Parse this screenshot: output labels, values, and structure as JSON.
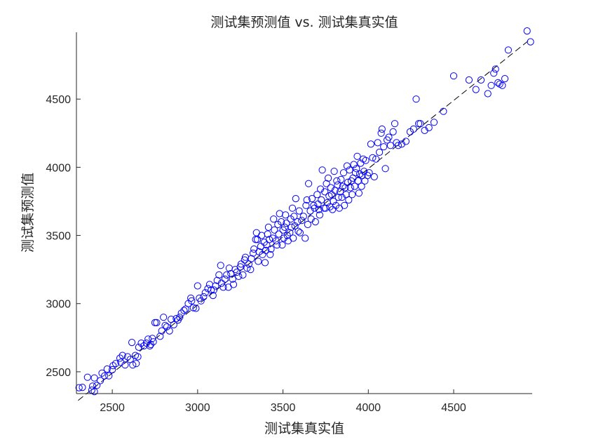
{
  "chart_data": {
    "type": "scatter",
    "title": "测试集预测值 vs. 测试集真实值",
    "xlabel": "测试集真实值",
    "ylabel": "测试集预测值",
    "xlim": [
      2290,
      4960
    ],
    "ylim": [
      2340,
      4990
    ],
    "xticks": [
      2500,
      3000,
      3500,
      4000,
      4500
    ],
    "yticks": [
      2500,
      3000,
      3500,
      4000,
      4500
    ],
    "marker": "open-circle",
    "marker_color": "#0000ff",
    "reference_line": {
      "style": "dashed",
      "color": "#000000",
      "from": [
        2300,
        2290
      ],
      "to": [
        4950,
        4940
      ]
    },
    "grid": false,
    "legend": "none",
    "points": [
      [
        2305,
        2383
      ],
      [
        2325,
        2386
      ],
      [
        2355,
        2460
      ],
      [
        2380,
        2365
      ],
      [
        2395,
        2355
      ],
      [
        2385,
        2395
      ],
      [
        2395,
        2455
      ],
      [
        2410,
        2400
      ],
      [
        2430,
        2435
      ],
      [
        2440,
        2490
      ],
      [
        2455,
        2470
      ],
      [
        2470,
        2520
      ],
      [
        2480,
        2470
      ],
      [
        2500,
        2515
      ],
      [
        2505,
        2545
      ],
      [
        2520,
        2560
      ],
      [
        2545,
        2600
      ],
      [
        2550,
        2570
      ],
      [
        2560,
        2620
      ],
      [
        2575,
        2550
      ],
      [
        2590,
        2610
      ],
      [
        2605,
        2590
      ],
      [
        2615,
        2715
      ],
      [
        2620,
        2550
      ],
      [
        2635,
        2620
      ],
      [
        2640,
        2560
      ],
      [
        2650,
        2610
      ],
      [
        2655,
        2680
      ],
      [
        2670,
        2710
      ],
      [
        2685,
        2690
      ],
      [
        2700,
        2710
      ],
      [
        2710,
        2740
      ],
      [
        2720,
        2690
      ],
      [
        2725,
        2700
      ],
      [
        2735,
        2745
      ],
      [
        2740,
        2720
      ],
      [
        2750,
        2860
      ],
      [
        2760,
        2860
      ],
      [
        2780,
        2760
      ],
      [
        2790,
        2800
      ],
      [
        2800,
        2900
      ],
      [
        2810,
        2840
      ],
      [
        2820,
        2830
      ],
      [
        2835,
        2800
      ],
      [
        2845,
        2885
      ],
      [
        2860,
        2845
      ],
      [
        2875,
        2890
      ],
      [
        2885,
        2880
      ],
      [
        2895,
        2900
      ],
      [
        2905,
        2930
      ],
      [
        2920,
        2950
      ],
      [
        2930,
        2960
      ],
      [
        2945,
        3000
      ],
      [
        2960,
        3040
      ],
      [
        2965,
        3020
      ],
      [
        2975,
        2970
      ],
      [
        2990,
        2965
      ],
      [
        3000,
        3130
      ],
      [
        3010,
        3040
      ],
      [
        3020,
        3020
      ],
      [
        3035,
        3050
      ],
      [
        3045,
        3080
      ],
      [
        3060,
        3110
      ],
      [
        3070,
        3140
      ],
      [
        3080,
        3100
      ],
      [
        3090,
        3060
      ],
      [
        3095,
        3100
      ],
      [
        3105,
        3130
      ],
      [
        3115,
        3170
      ],
      [
        3125,
        3210
      ],
      [
        3135,
        3280
      ],
      [
        3140,
        3150
      ],
      [
        3150,
        3120
      ],
      [
        3160,
        3180
      ],
      [
        3170,
        3210
      ],
      [
        3180,
        3120
      ],
      [
        3185,
        3260
      ],
      [
        3195,
        3220
      ],
      [
        3205,
        3180
      ],
      [
        3210,
        3140
      ],
      [
        3220,
        3250
      ],
      [
        3230,
        3230
      ],
      [
        3240,
        3200
      ],
      [
        3250,
        3270
      ],
      [
        3255,
        3290
      ],
      [
        3265,
        3210
      ],
      [
        3275,
        3320
      ],
      [
        3280,
        3340
      ],
      [
        3290,
        3260
      ],
      [
        3300,
        3290
      ],
      [
        3310,
        3250
      ],
      [
        3315,
        3330
      ],
      [
        3325,
        3370
      ],
      [
        3330,
        3400
      ],
      [
        3340,
        3470
      ],
      [
        3345,
        3520
      ],
      [
        3350,
        3470
      ],
      [
        3355,
        3310
      ],
      [
        3360,
        3380
      ],
      [
        3370,
        3420
      ],
      [
        3375,
        3500
      ],
      [
        3380,
        3360
      ],
      [
        3390,
        3450
      ],
      [
        3395,
        3300
      ],
      [
        3400,
        3390
      ],
      [
        3405,
        3430
      ],
      [
        3410,
        3510
      ],
      [
        3415,
        3560
      ],
      [
        3420,
        3470
      ],
      [
        3425,
        3360
      ],
      [
        3430,
        3400
      ],
      [
        3440,
        3480
      ],
      [
        3445,
        3620
      ],
      [
        3450,
        3540
      ],
      [
        3460,
        3460
      ],
      [
        3465,
        3430
      ],
      [
        3470,
        3580
      ],
      [
        3475,
        3510
      ],
      [
        3480,
        3660
      ],
      [
        3490,
        3600
      ],
      [
        3495,
        3430
      ],
      [
        3500,
        3540
      ],
      [
        3505,
        3480
      ],
      [
        3510,
        3560
      ],
      [
        3515,
        3650
      ],
      [
        3520,
        3590
      ],
      [
        3525,
        3500
      ],
      [
        3530,
        3460
      ],
      [
        3540,
        3520
      ],
      [
        3545,
        3620
      ],
      [
        3550,
        3560
      ],
      [
        3555,
        3700
      ],
      [
        3560,
        3480
      ],
      [
        3565,
        3640
      ],
      [
        3570,
        3570
      ],
      [
        3575,
        3770
      ],
      [
        3585,
        3600
      ],
      [
        3590,
        3530
      ],
      [
        3595,
        3680
      ],
      [
        3600,
        3520
      ],
      [
        3610,
        3610
      ],
      [
        3620,
        3640
      ],
      [
        3630,
        3480
      ],
      [
        3635,
        3720
      ],
      [
        3640,
        3760
      ],
      [
        3645,
        3580
      ],
      [
        3650,
        3880
      ],
      [
        3660,
        3680
      ],
      [
        3665,
        3620
      ],
      [
        3670,
        3770
      ],
      [
        3680,
        3720
      ],
      [
        3685,
        3700
      ],
      [
        3690,
        3600
      ],
      [
        3700,
        3800
      ],
      [
        3705,
        3730
      ],
      [
        3710,
        3690
      ],
      [
        3715,
        3650
      ],
      [
        3720,
        3840
      ],
      [
        3725,
        3760
      ],
      [
        3730,
        3980
      ],
      [
        3740,
        3700
      ],
      [
        3745,
        3820
      ],
      [
        3750,
        3700
      ],
      [
        3755,
        3880
      ],
      [
        3760,
        3740
      ],
      [
        3765,
        3920
      ],
      [
        3770,
        3790
      ],
      [
        3775,
        3710
      ],
      [
        3780,
        3850
      ],
      [
        3785,
        3800
      ],
      [
        3790,
        3690
      ],
      [
        3795,
        3750
      ],
      [
        3800,
        3970
      ],
      [
        3805,
        3830
      ],
      [
        3810,
        3720
      ],
      [
        3815,
        3900
      ],
      [
        3820,
        3870
      ],
      [
        3825,
        3780
      ],
      [
        3830,
        3700
      ],
      [
        3835,
        3820
      ],
      [
        3840,
        3910
      ],
      [
        3845,
        3780
      ],
      [
        3850,
        3860
      ],
      [
        3855,
        3960
      ],
      [
        3860,
        3720
      ],
      [
        3865,
        3850
      ],
      [
        3870,
        3800
      ],
      [
        3875,
        4010
      ],
      [
        3880,
        3890
      ],
      [
        3885,
        3760
      ],
      [
        3890,
        3980
      ],
      [
        3895,
        3850
      ],
      [
        3900,
        3900
      ],
      [
        3905,
        3800
      ],
      [
        3910,
        3920
      ],
      [
        3915,
        4020
      ],
      [
        3920,
        3860
      ],
      [
        3925,
        3960
      ],
      [
        3930,
        3990
      ],
      [
        3935,
        4080
      ],
      [
        3940,
        3900
      ],
      [
        3945,
        3810
      ],
      [
        3950,
        3950
      ],
      [
        3955,
        4030
      ],
      [
        3960,
        3860
      ],
      [
        3965,
        3940
      ],
      [
        3970,
        4060
      ],
      [
        3975,
        3970
      ],
      [
        3980,
        3900
      ],
      [
        3985,
        4050
      ],
      [
        3995,
        3940
      ],
      [
        4005,
        3960
      ],
      [
        4015,
        4170
      ],
      [
        4025,
        4070
      ],
      [
        4035,
        3930
      ],
      [
        4045,
        4060
      ],
      [
        4055,
        4180
      ],
      [
        4065,
        4110
      ],
      [
        4075,
        4250
      ],
      [
        4080,
        4280
      ],
      [
        4090,
        4150
      ],
      [
        4100,
        3990
      ],
      [
        4110,
        4200
      ],
      [
        4120,
        4220
      ],
      [
        4130,
        4160
      ],
      [
        4145,
        4260
      ],
      [
        4155,
        4320
      ],
      [
        4165,
        4180
      ],
      [
        4175,
        4160
      ],
      [
        4195,
        4170
      ],
      [
        4220,
        4190
      ],
      [
        4245,
        4260
      ],
      [
        4265,
        4280
      ],
      [
        4280,
        4500
      ],
      [
        4295,
        4320
      ],
      [
        4305,
        4320
      ],
      [
        4330,
        4270
      ],
      [
        4355,
        4290
      ],
      [
        4385,
        4330
      ],
      [
        4440,
        4410
      ],
      [
        4500,
        4670
      ],
      [
        4590,
        4640
      ],
      [
        4630,
        4570
      ],
      [
        4660,
        4640
      ],
      [
        4700,
        4540
      ],
      [
        4720,
        4600
      ],
      [
        4735,
        4690
      ],
      [
        4745,
        4720
      ],
      [
        4760,
        4620
      ],
      [
        4770,
        4610
      ],
      [
        4785,
        4600
      ],
      [
        4800,
        4650
      ],
      [
        4820,
        4860
      ],
      [
        4930,
        5000
      ],
      [
        4950,
        4920
      ]
    ]
  }
}
